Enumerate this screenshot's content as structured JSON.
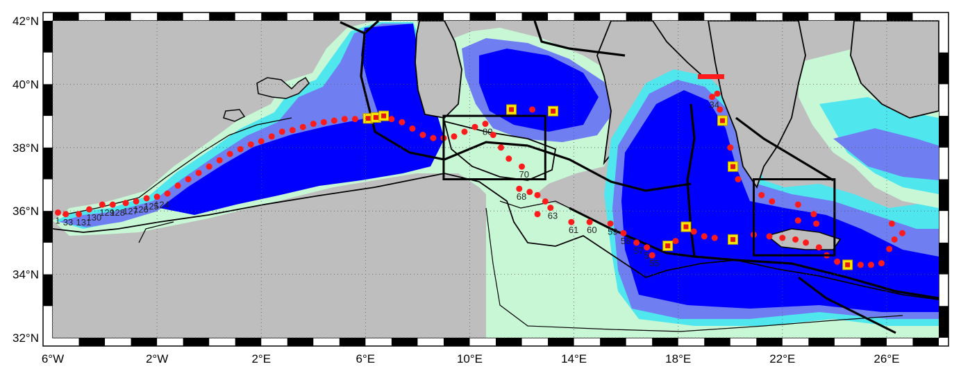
{
  "map": {
    "lon_range": [
      -6,
      28
    ],
    "lat_range": [
      32,
      42
    ],
    "colors": {
      "land": "#bebebe",
      "deep": "#0000ff",
      "mid": "#3c4cf0",
      "slope": "#6f7ff2",
      "shelf": "#4fe6ee",
      "coastal": "#c8f7d6",
      "station": "#ff1b1b",
      "box_fill": "#ffea00",
      "box_edge": "#e31414"
    },
    "lon_ticks": [
      {
        "value": -6,
        "label": "6°W"
      },
      {
        "value": -2,
        "label": "2°W"
      },
      {
        "value": 2,
        "label": "2°E"
      },
      {
        "value": 6,
        "label": "6°E"
      },
      {
        "value": 10,
        "label": "10°E"
      },
      {
        "value": 14,
        "label": "14°E"
      },
      {
        "value": 18,
        "label": "18°E"
      },
      {
        "value": 22,
        "label": "22°E"
      },
      {
        "value": 26,
        "label": "26°E"
      }
    ],
    "lat_ticks": [
      {
        "value": 42,
        "label": "42°N"
      },
      {
        "value": 40,
        "label": "40°N"
      },
      {
        "value": 38,
        "label": "38°N"
      },
      {
        "value": 36,
        "label": "36°N"
      },
      {
        "value": 34,
        "label": "34°N"
      },
      {
        "value": 32,
        "label": "32°N"
      }
    ],
    "boxes": [
      {
        "name": "box-sicily-channel",
        "lon": [
          9,
          12.9
        ],
        "lat": [
          37,
          39
        ]
      },
      {
        "name": "box-cretan",
        "lon": [
          20.9,
          24
        ],
        "lat": [
          34.6,
          37
        ]
      }
    ],
    "highlights": [
      {
        "lon": 6.1,
        "lat": 38.92
      },
      {
        "lon": 6.4,
        "lat": 38.95
      },
      {
        "lon": 6.7,
        "lat": 39.0
      },
      {
        "lon": 11.6,
        "lat": 39.2
      },
      {
        "lon": 13.2,
        "lat": 39.15
      },
      {
        "lon": 19.7,
        "lat": 38.85
      },
      {
        "lon": 20.1,
        "lat": 37.4
      },
      {
        "lon": 18.3,
        "lat": 35.5
      },
      {
        "lon": 17.6,
        "lat": 34.9
      },
      {
        "lon": 20.1,
        "lat": 35.1
      },
      {
        "lon": 24.5,
        "lat": 34.3
      }
    ],
    "stations": [
      {
        "label": "1",
        "lon": -5.8,
        "lat": 35.95
      },
      {
        "label": "33",
        "lon": -5.5,
        "lat": 35.9
      },
      {
        "label": "131",
        "lon": -5.0,
        "lat": 35.9
      },
      {
        "label": "130",
        "lon": -4.6,
        "lat": 36.05
      },
      {
        "label": "129",
        "lon": -4.1,
        "lat": 36.2
      },
      {
        "label": "128",
        "lon": -3.7,
        "lat": 36.2
      },
      {
        "label": "127",
        "lon": -3.2,
        "lat": 36.25
      },
      {
        "label": "126",
        "lon": -2.8,
        "lat": 36.3
      },
      {
        "label": "125",
        "lon": -2.4,
        "lat": 36.4
      },
      {
        "label": "124",
        "lon": -2.0,
        "lat": 36.45
      },
      {
        "label": "",
        "lon": -1.6,
        "lat": 36.55
      },
      {
        "label": "",
        "lon": -1.2,
        "lat": 36.8
      },
      {
        "label": "",
        "lon": -0.8,
        "lat": 37.0
      },
      {
        "label": "",
        "lon": -0.4,
        "lat": 37.2
      },
      {
        "label": "",
        "lon": 0.0,
        "lat": 37.4
      },
      {
        "label": "",
        "lon": 0.4,
        "lat": 37.6
      },
      {
        "label": "",
        "lon": 0.8,
        "lat": 37.8
      },
      {
        "label": "",
        "lon": 1.2,
        "lat": 37.95
      },
      {
        "label": "",
        "lon": 1.6,
        "lat": 38.1
      },
      {
        "label": "",
        "lon": 2.0,
        "lat": 38.2
      },
      {
        "label": "",
        "lon": 2.4,
        "lat": 38.35
      },
      {
        "label": "",
        "lon": 2.8,
        "lat": 38.5
      },
      {
        "label": "",
        "lon": 3.2,
        "lat": 38.55
      },
      {
        "label": "",
        "lon": 3.6,
        "lat": 38.65
      },
      {
        "label": "",
        "lon": 4.0,
        "lat": 38.75
      },
      {
        "label": "",
        "lon": 4.4,
        "lat": 38.8
      },
      {
        "label": "",
        "lon": 4.8,
        "lat": 38.85
      },
      {
        "label": "",
        "lon": 5.2,
        "lat": 38.9
      },
      {
        "label": "",
        "lon": 5.6,
        "lat": 38.9
      },
      {
        "label": "",
        "lon": 7.0,
        "lat": 38.9
      },
      {
        "label": "",
        "lon": 7.4,
        "lat": 38.8
      },
      {
        "label": "",
        "lon": 7.8,
        "lat": 38.6
      },
      {
        "label": "",
        "lon": 8.2,
        "lat": 38.4
      },
      {
        "label": "",
        "lon": 8.6,
        "lat": 38.3
      },
      {
        "label": "",
        "lon": 9.0,
        "lat": 38.3
      },
      {
        "label": "",
        "lon": 9.4,
        "lat": 38.35
      },
      {
        "label": "",
        "lon": 9.8,
        "lat": 38.5
      },
      {
        "label": "",
        "lon": 10.2,
        "lat": 38.65
      },
      {
        "label": "80",
        "lon": 10.6,
        "lat": 38.75
      },
      {
        "label": "",
        "lon": 10.9,
        "lat": 38.4
      },
      {
        "label": "",
        "lon": 11.2,
        "lat": 38.0
      },
      {
        "label": "",
        "lon": 11.5,
        "lat": 37.65
      },
      {
        "label": "70",
        "lon": 12.0,
        "lat": 37.4
      },
      {
        "label": "",
        "lon": 12.4,
        "lat": 39.2
      },
      {
        "label": "68",
        "lon": 11.9,
        "lat": 36.7
      },
      {
        "label": "",
        "lon": 12.3,
        "lat": 36.6
      },
      {
        "label": "",
        "lon": 12.6,
        "lat": 36.5
      },
      {
        "label": "",
        "lon": 12.9,
        "lat": 36.3
      },
      {
        "label": "63",
        "lon": 13.1,
        "lat": 36.1
      },
      {
        "label": "",
        "lon": 12.6,
        "lat": 35.9
      },
      {
        "label": "61",
        "lon": 13.9,
        "lat": 35.65
      },
      {
        "label": "60",
        "lon": 14.6,
        "lat": 35.65
      },
      {
        "label": "59",
        "lon": 15.4,
        "lat": 35.6
      },
      {
        "label": "58",
        "lon": 15.9,
        "lat": 35.3
      },
      {
        "label": "57",
        "lon": 16.4,
        "lat": 35.0
      },
      {
        "label": "56",
        "lon": 16.8,
        "lat": 34.85
      },
      {
        "label": "55",
        "lon": 17.0,
        "lat": 34.6
      },
      {
        "label": "",
        "lon": 17.9,
        "lat": 35.05
      },
      {
        "label": "",
        "lon": 18.6,
        "lat": 35.35
      },
      {
        "label": "",
        "lon": 19.0,
        "lat": 35.2
      },
      {
        "label": "",
        "lon": 19.4,
        "lat": 35.15
      },
      {
        "label": "",
        "lon": 20.9,
        "lat": 35.25
      },
      {
        "label": "",
        "lon": 21.5,
        "lat": 35.2
      },
      {
        "label": "",
        "lon": 22.0,
        "lat": 35.15
      },
      {
        "label": "",
        "lon": 22.5,
        "lat": 35.1
      },
      {
        "label": "",
        "lon": 22.9,
        "lat": 35.0
      },
      {
        "label": "",
        "lon": 23.4,
        "lat": 34.85
      },
      {
        "label": "",
        "lon": 23.7,
        "lat": 34.6
      },
      {
        "label": "",
        "lon": 24.1,
        "lat": 34.4
      },
      {
        "label": "",
        "lon": 25.0,
        "lat": 34.3
      },
      {
        "label": "",
        "lon": 25.4,
        "lat": 34.3
      },
      {
        "label": "",
        "lon": 25.8,
        "lat": 34.35
      },
      {
        "label": "",
        "lon": 26.1,
        "lat": 34.8
      },
      {
        "label": "",
        "lon": 26.3,
        "lat": 35.1
      },
      {
        "label": "",
        "lon": 26.6,
        "lat": 35.3
      },
      {
        "label": "",
        "lon": 26.2,
        "lat": 35.6
      },
      {
        "label": "",
        "lon": 21.2,
        "lat": 36.5
      },
      {
        "label": "",
        "lon": 21.6,
        "lat": 36.3
      },
      {
        "label": "",
        "lon": 22.6,
        "lat": 36.2
      },
      {
        "label": "",
        "lon": 23.2,
        "lat": 35.9
      },
      {
        "label": "",
        "lon": 22.6,
        "lat": 35.7
      },
      {
        "label": "",
        "lon": 23.3,
        "lat": 35.6
      },
      {
        "label": "",
        "lon": 20.3,
        "lat": 37.0
      },
      {
        "label": "",
        "lon": 20.0,
        "lat": 38.0
      },
      {
        "label": "",
        "lon": 19.6,
        "lat": 39.2
      },
      {
        "label": "34",
        "lon": 19.3,
        "lat": 39.6
      },
      {
        "label": "",
        "lon": 19.5,
        "lat": 39.7
      }
    ]
  }
}
